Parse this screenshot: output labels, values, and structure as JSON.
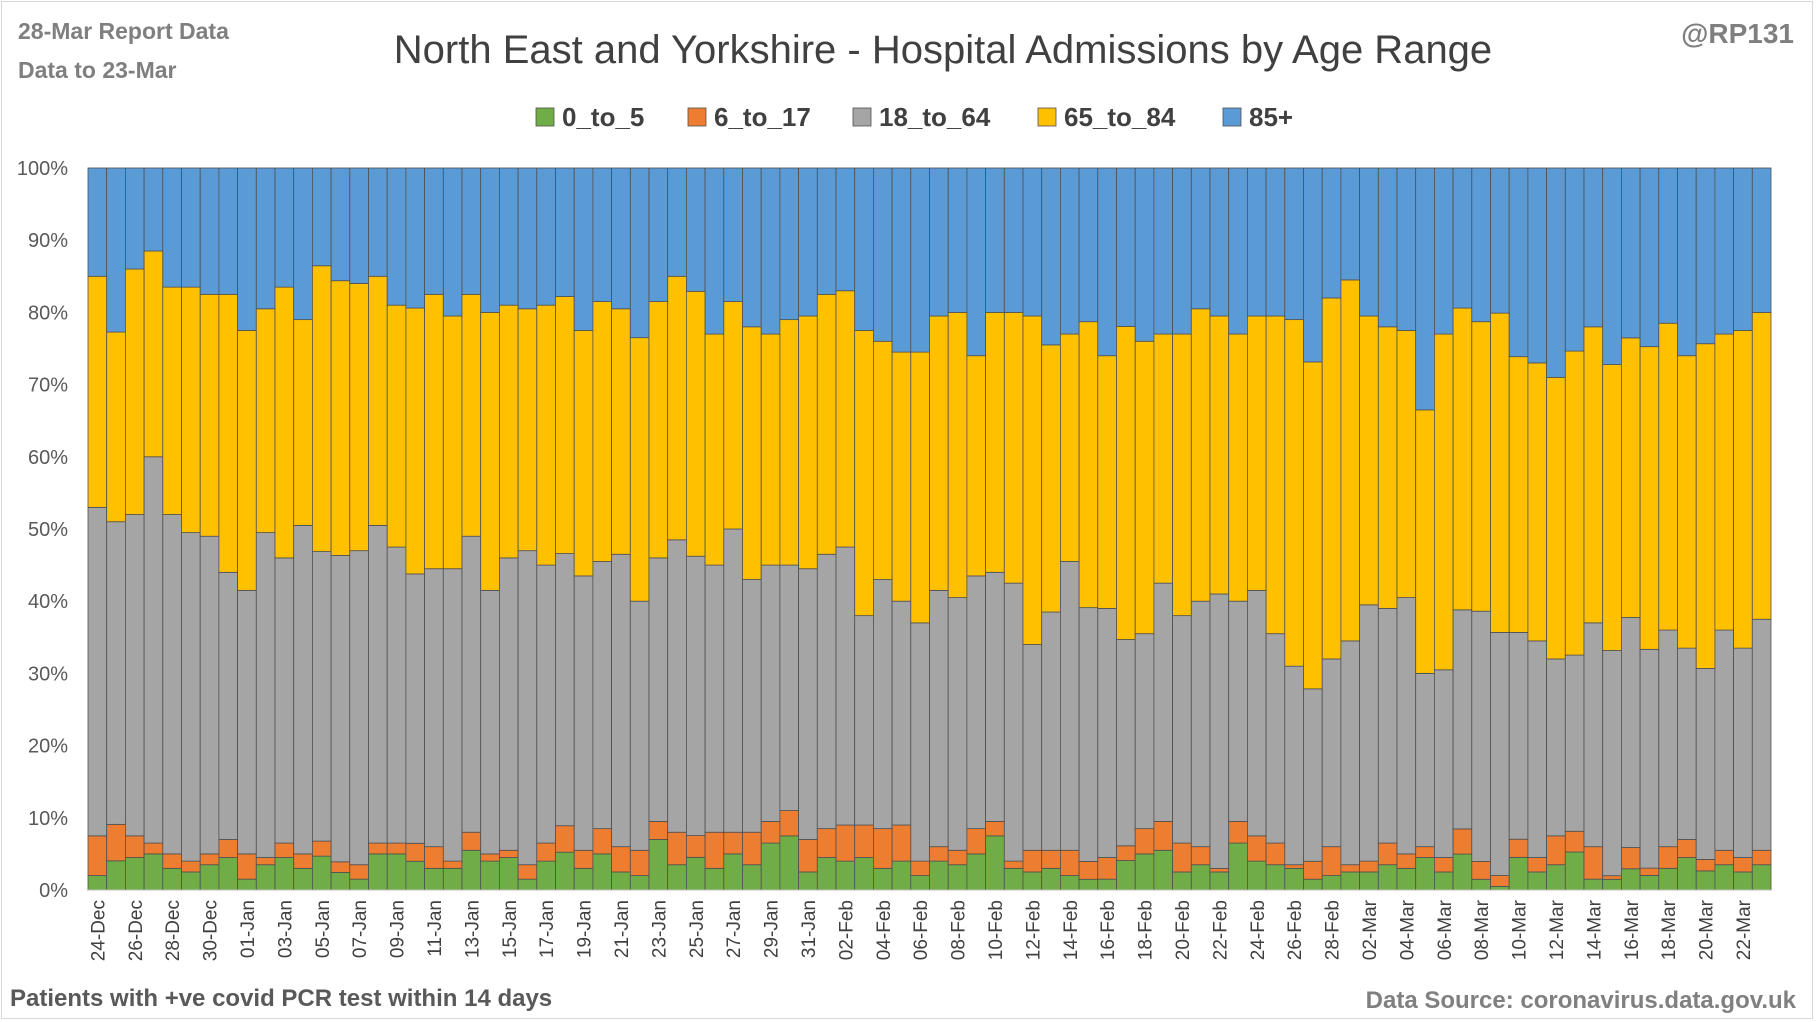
{
  "header": {
    "report_line1": "28-Mar Report Data",
    "report_line2": "Data to 23-Mar",
    "handle": "@RP131"
  },
  "footer": {
    "left": "Patients with  +ve covid PCR test within 14 days",
    "right": "Data Source: coronavirus.data.gov.uk"
  },
  "colors": {
    "0_to_5": "#70ad47",
    "6_to_17": "#ed7d31",
    "18_to_64": "#a5a5a5",
    "65_to_84": "#ffc000",
    "85+": "#5b9bd5"
  },
  "chart_data": {
    "type": "bar",
    "stacked": "percent",
    "title": "North East and Yorkshire - Hospital Admissions by Age Range",
    "xlabel": "",
    "ylabel": "",
    "ylim": [
      0,
      100
    ],
    "y_ticks": [
      "0%",
      "10%",
      "20%",
      "30%",
      "40%",
      "50%",
      "60%",
      "70%",
      "80%",
      "90%",
      "100%"
    ],
    "legend_position": "top",
    "grid": true,
    "x_tick_labels": [
      "24-Dec",
      "26-Dec",
      "28-Dec",
      "30-Dec",
      "01-Jan",
      "03-Jan",
      "05-Jan",
      "07-Jan",
      "09-Jan",
      "11-Jan",
      "13-Jan",
      "15-Jan",
      "17-Jan",
      "19-Jan",
      "21-Jan",
      "23-Jan",
      "25-Jan",
      "27-Jan",
      "29-Jan",
      "31-Jan",
      "02-Feb",
      "04-Feb",
      "06-Feb",
      "08-Feb",
      "10-Feb",
      "12-Feb",
      "14-Feb",
      "16-Feb",
      "18-Feb",
      "20-Feb",
      "22-Feb",
      "24-Feb",
      "26-Feb",
      "28-Feb",
      "02-Mar",
      "04-Mar",
      "06-Mar",
      "08-Mar",
      "10-Mar",
      "12-Mar",
      "14-Mar",
      "16-Mar",
      "18-Mar",
      "20-Mar",
      "22-Mar"
    ],
    "categories": [
      "24-Dec",
      "25-Dec",
      "26-Dec",
      "27-Dec",
      "28-Dec",
      "29-Dec",
      "30-Dec",
      "31-Dec",
      "01-Jan",
      "02-Jan",
      "03-Jan",
      "04-Jan",
      "05-Jan",
      "06-Jan",
      "07-Jan",
      "08-Jan",
      "09-Jan",
      "10-Jan",
      "11-Jan",
      "12-Jan",
      "13-Jan",
      "14-Jan",
      "15-Jan",
      "16-Jan",
      "17-Jan",
      "18-Jan",
      "19-Jan",
      "20-Jan",
      "21-Jan",
      "22-Jan",
      "23-Jan",
      "24-Jan",
      "25-Jan",
      "26-Jan",
      "27-Jan",
      "28-Jan",
      "29-Jan",
      "30-Jan",
      "31-Jan",
      "01-Feb",
      "02-Feb",
      "03-Feb",
      "04-Feb",
      "05-Feb",
      "06-Feb",
      "07-Feb",
      "08-Feb",
      "09-Feb",
      "10-Feb",
      "11-Feb",
      "12-Feb",
      "13-Feb",
      "14-Feb",
      "15-Feb",
      "16-Feb",
      "17-Feb",
      "18-Feb",
      "19-Feb",
      "20-Feb",
      "21-Feb",
      "22-Feb",
      "23-Feb",
      "24-Feb",
      "25-Feb",
      "26-Feb",
      "27-Feb",
      "28-Feb",
      "01-Mar",
      "02-Mar",
      "03-Mar",
      "04-Mar",
      "05-Mar",
      "06-Mar",
      "07-Mar",
      "08-Mar",
      "09-Mar",
      "10-Mar",
      "11-Mar",
      "12-Mar",
      "13-Mar",
      "14-Mar",
      "15-Mar",
      "16-Mar",
      "17-Mar",
      "18-Mar",
      "19-Mar",
      "20-Mar",
      "21-Mar",
      "22-Mar",
      "23-Mar"
    ],
    "series": [
      {
        "name": "0_to_5",
        "values": [
          2,
          4,
          4.5,
          5,
          3,
          2.5,
          3.5,
          4.5,
          1.5,
          3.5,
          4.5,
          3,
          4.5,
          2.5,
          1.5,
          5,
          5,
          4,
          3,
          3,
          5.5,
          4,
          4.5,
          1.5,
          4,
          5,
          3,
          5,
          2.5,
          2,
          7,
          3.5,
          4.5,
          3,
          5,
          3.5,
          6.5,
          7.5,
          2.5,
          4.5,
          4,
          4.5,
          3,
          4,
          2,
          4,
          3.5,
          5,
          7.5,
          3,
          2.5,
          3,
          2,
          1.5,
          1.5,
          4,
          5,
          5.5,
          2.5,
          3.5,
          2.5,
          6.5,
          4,
          3.5,
          3,
          1.5,
          2,
          2.5,
          2.5,
          3.5,
          3,
          4.5,
          2.5,
          5,
          1.5,
          0.5,
          4.5,
          2.5,
          3.5,
          5.5,
          1.5,
          1.5,
          3,
          2,
          3,
          4.5,
          2.5,
          3.5,
          2.5,
          3.5
        ]
      },
      {
        "name": "6_to_17",
        "values": [
          5.5,
          5,
          3,
          1.5,
          2,
          1.5,
          1.5,
          2.5,
          3.5,
          1,
          2,
          2,
          2,
          1.5,
          2,
          1.5,
          1.5,
          2.5,
          3,
          1,
          2.5,
          1,
          1,
          2,
          2.5,
          3.5,
          2.5,
          3.5,
          3.5,
          3.5,
          2.5,
          4.5,
          3,
          5,
          3,
          4.5,
          3,
          3.5,
          4.5,
          4,
          5,
          4.5,
          5.5,
          5,
          2,
          2,
          2,
          3.5,
          2,
          1,
          3,
          2.5,
          3.5,
          2.5,
          3,
          2,
          3.5,
          4,
          4,
          2.5,
          0.5,
          3,
          3.5,
          3,
          0.5,
          2.5,
          4,
          1,
          1.5,
          3,
          2,
          1.5,
          2,
          3.5,
          2.5,
          1.5,
          2.5,
          2,
          4,
          3,
          4.5,
          0.5,
          3,
          1,
          3,
          2.5,
          1.5,
          2,
          2,
          2
        ]
      },
      {
        "name": "18_to_64",
        "values": [
          45.5,
          41.5,
          44.5,
          53.5,
          47,
          45.5,
          44,
          37,
          36.5,
          45,
          39.5,
          45.5,
          38.5,
          43.5,
          43.5,
          44,
          41,
          37.5,
          38.5,
          40.5,
          41,
          36.5,
          40.5,
          43.5,
          38.5,
          36,
          38,
          37,
          40.5,
          34.5,
          36.5,
          40.5,
          38.5,
          37,
          42,
          35,
          35.5,
          34,
          37.5,
          38,
          38.5,
          29,
          34.5,
          31,
          33,
          35.5,
          35,
          35,
          34.5,
          38.5,
          28.5,
          33,
          40,
          35.5,
          34.5,
          28,
          27,
          33,
          31.5,
          34,
          38,
          30.5,
          34,
          29,
          27.5,
          24,
          26,
          31,
          35.5,
          32.5,
          35.5,
          24,
          26,
          30.5,
          35,
          33.5,
          28.5,
          30,
          24.5,
          25.5,
          31,
          31.5,
          32.5,
          30,
          30,
          26.5,
          25,
          30.5,
          29,
          32
        ]
      },
      {
        "name": "65_to_84",
        "values": [
          32,
          26,
          34,
          28.5,
          31.5,
          34,
          33.5,
          38.5,
          36,
          31,
          37.5,
          28.5,
          38,
          39,
          37,
          34.5,
          33.5,
          37,
          38,
          35,
          33.5,
          38.5,
          35,
          33.5,
          36,
          34,
          34,
          36,
          34,
          36.5,
          35.5,
          36.5,
          36.5,
          32,
          31.5,
          35,
          32,
          34,
          35,
          36,
          35.5,
          39.5,
          33,
          34.5,
          37.5,
          38,
          39.5,
          30.5,
          36,
          37.5,
          45.5,
          37,
          31.5,
          40,
          35,
          42.5,
          40.5,
          34.5,
          39,
          40.5,
          38.5,
          37,
          38,
          44,
          48,
          45.5,
          50,
          50,
          40,
          39,
          37,
          36.5,
          46.5,
          42,
          40.5,
          44,
          38,
          38.5,
          39,
          44,
          41,
          40,
          39.5,
          41.5,
          42.5,
          40.5,
          42.5,
          41,
          44,
          42.5
        ]
      },
      {
        "name": "85+",
        "values": [
          15,
          22.5,
          14,
          11.5,
          16.5,
          16.5,
          17.5,
          17.5,
          22.5,
          19.5,
          16.5,
          21,
          13,
          16,
          16,
          15,
          19,
          19.5,
          17.5,
          20.5,
          17.5,
          20,
          19,
          19.5,
          19,
          17,
          22.5,
          18.5,
          19.5,
          23.5,
          18.5,
          15,
          17,
          23,
          18.5,
          22,
          23,
          21,
          20.5,
          17.5,
          17,
          22.5,
          24,
          25.5,
          25.5,
          20.5,
          20,
          26,
          20,
          20,
          20.5,
          24.5,
          23,
          21.5,
          26,
          21.5,
          24,
          23,
          23,
          19.5,
          20.5,
          23,
          20.5,
          20.5,
          21,
          27,
          18,
          15.5,
          20.5,
          22,
          22.5,
          33.5,
          23,
          19.5,
          21.5,
          20,
          26,
          27,
          29,
          26.5,
          22,
          27.5,
          24,
          24.5,
          21.5,
          26,
          23,
          23,
          22.5,
          20
        ]
      }
    ]
  }
}
